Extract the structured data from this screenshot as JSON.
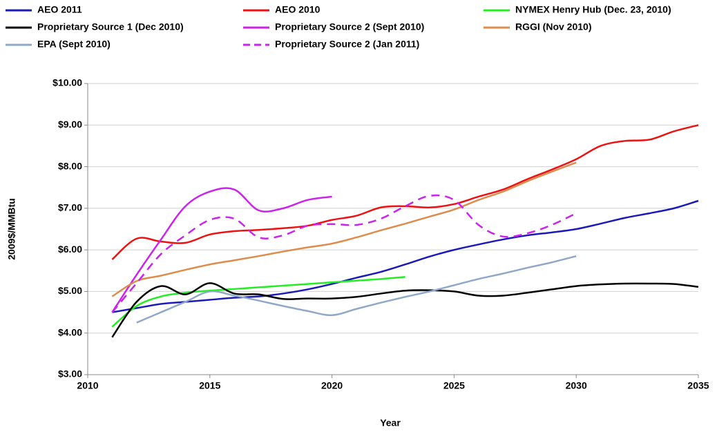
{
  "chart_data": {
    "type": "line",
    "xlabel": "Year",
    "ylabel": "2009$/MMBtu",
    "x": [
      2011,
      2012,
      2013,
      2014,
      2015,
      2016,
      2017,
      2018,
      2019,
      2020,
      2021,
      2022,
      2023,
      2024,
      2025,
      2026,
      2027,
      2028,
      2029,
      2030,
      2031,
      2032,
      2033,
      2034,
      2035
    ],
    "xlim": [
      2010,
      2035
    ],
    "xticks": [
      2010,
      2015,
      2020,
      2025,
      2030,
      2035
    ],
    "ylim": [
      3,
      10
    ],
    "yticks": [
      {
        "value": 3,
        "label": "$3.00"
      },
      {
        "value": 4,
        "label": "$4.00"
      },
      {
        "value": 5,
        "label": "$5.00"
      },
      {
        "value": 6,
        "label": "$6.00"
      },
      {
        "value": 7,
        "label": "$7.00"
      },
      {
        "value": 8,
        "label": "$8.00"
      },
      {
        "value": 9,
        "label": "$9.00"
      },
      {
        "value": 10,
        "label": "$10.00"
      }
    ],
    "grid": true,
    "legend": "top",
    "series": [
      {
        "name": "AEO 2011",
        "color": "#1a1ab8",
        "values": [
          4.5,
          4.6,
          4.7,
          4.75,
          4.8,
          4.85,
          4.88,
          4.95,
          5.05,
          5.18,
          5.33,
          5.47,
          5.65,
          5.84,
          6.0,
          6.13,
          6.25,
          6.35,
          6.42,
          6.5,
          6.63,
          6.77,
          6.88,
          7.0,
          7.18
        ]
      },
      {
        "name": "AEO 2010",
        "color": "#ee1111",
        "values": [
          5.77,
          6.27,
          6.2,
          6.17,
          6.37,
          6.45,
          6.48,
          6.52,
          6.58,
          6.72,
          6.82,
          7.02,
          7.05,
          7.02,
          7.1,
          7.28,
          7.45,
          7.7,
          7.93,
          8.18,
          8.5,
          8.62,
          8.65,
          8.85,
          9.0
        ]
      },
      {
        "name": "NYMEX Henry Hub (Dec. 23, 2010)",
        "color": "#22ee22",
        "values": [
          4.15,
          4.65,
          4.88,
          4.97,
          5.02,
          5.06,
          5.1,
          5.14,
          5.18,
          5.22,
          5.26,
          5.3,
          5.35,
          null,
          null,
          null,
          null,
          null,
          null,
          null,
          null,
          null,
          null,
          null,
          null
        ]
      },
      {
        "name": "Proprietary Source 1 (Dec 2010)",
        "color": "#000000",
        "values": [
          3.9,
          4.75,
          5.13,
          4.93,
          5.2,
          4.95,
          4.93,
          4.82,
          4.83,
          4.83,
          4.87,
          4.95,
          5.02,
          5.03,
          5.0,
          4.9,
          4.9,
          4.97,
          5.05,
          5.13,
          5.17,
          5.19,
          5.19,
          5.18,
          5.11
        ]
      },
      {
        "name": "Proprietary Source 2 (Sept 2010)",
        "color": "#cc22ee",
        "values": [
          4.5,
          5.4,
          6.25,
          7.05,
          7.4,
          7.45,
          6.95,
          7.0,
          7.2,
          7.28,
          null,
          null,
          null,
          null,
          null,
          null,
          null,
          null,
          null,
          null,
          null,
          null,
          null,
          null,
          null
        ]
      },
      {
        "name": "RGGI (Nov 2010)",
        "color": "#de8c4c",
        "values": [
          4.88,
          5.25,
          5.38,
          5.52,
          5.65,
          5.75,
          5.85,
          5.96,
          6.06,
          6.15,
          6.3,
          6.47,
          6.63,
          6.8,
          6.97,
          7.2,
          7.4,
          7.65,
          7.88,
          8.1,
          null,
          null,
          null,
          null,
          null
        ]
      },
      {
        "name": "EPA (Sept 2010)",
        "color": "#8fa8c8",
        "values": [
          null,
          4.25,
          4.5,
          4.75,
          5.0,
          4.9,
          4.78,
          4.65,
          4.53,
          4.43,
          4.58,
          4.73,
          4.87,
          5.0,
          5.15,
          5.3,
          5.43,
          5.57,
          5.7,
          5.85,
          null,
          null,
          null,
          null,
          null
        ]
      },
      {
        "name": "Proprietary Source 2 (Jan 2011)",
        "color": "#cc22ee",
        "dashed": true,
        "values": [
          4.5,
          5.2,
          5.9,
          6.35,
          6.72,
          6.75,
          6.3,
          6.35,
          6.58,
          6.62,
          6.6,
          6.75,
          7.05,
          7.3,
          7.2,
          6.6,
          6.32,
          6.4,
          6.6,
          6.88,
          null,
          null,
          null,
          null,
          null
        ]
      }
    ]
  }
}
